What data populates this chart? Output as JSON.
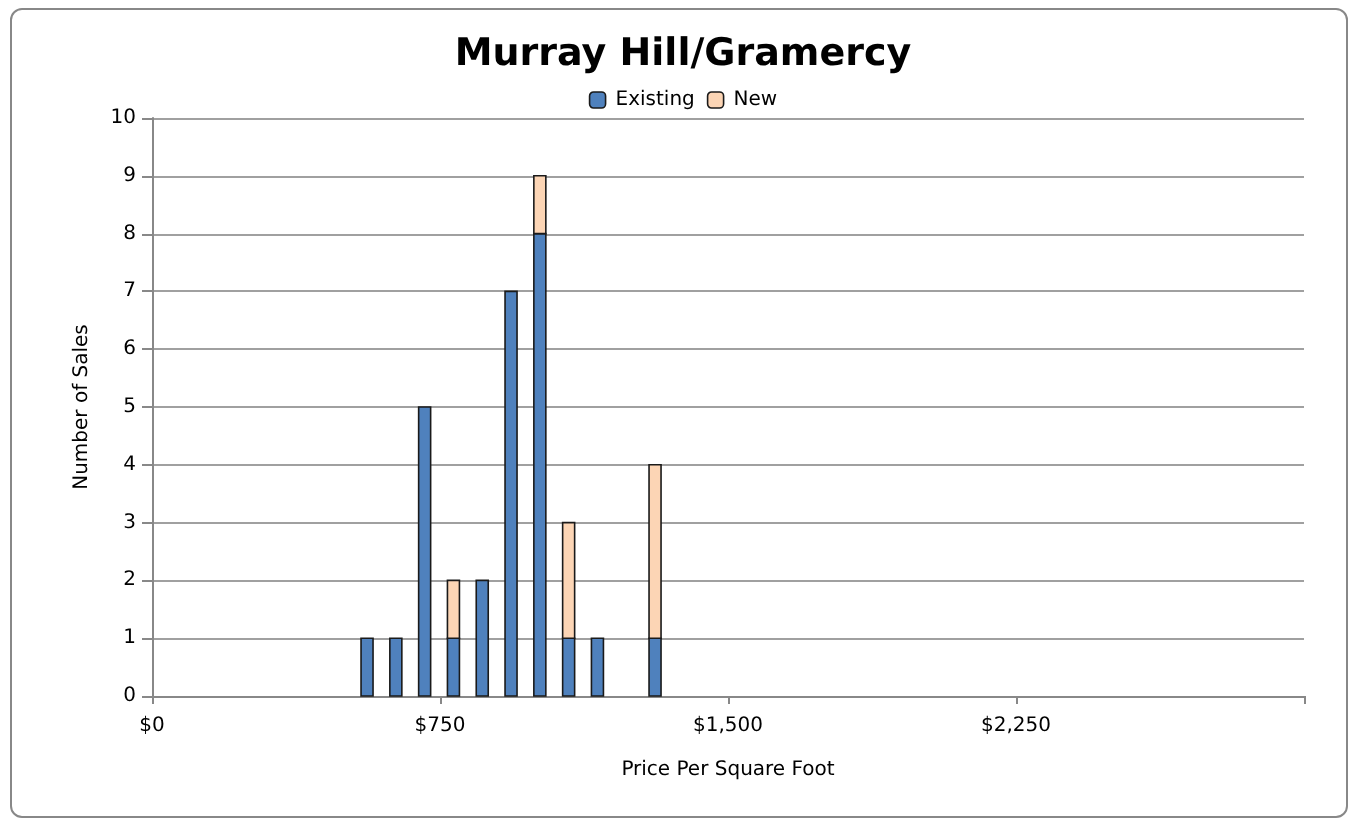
{
  "chart_data": {
    "type": "bar",
    "title": "Murray Hill/Gramercy",
    "xlabel": "Price Per Square Foot",
    "ylabel": "Number of Sales",
    "stacked": true,
    "x": [
      560,
      635,
      710,
      785,
      860,
      935,
      1010,
      1085,
      1160,
      1310
    ],
    "series": [
      {
        "name": "Existing",
        "color": "#4f81bd",
        "values": [
          1,
          1,
          5,
          1,
          2,
          7,
          8,
          1,
          1,
          1
        ]
      },
      {
        "name": "New",
        "color": "#fcd5b5",
        "values": [
          0,
          0,
          0,
          1,
          0,
          0,
          1,
          2,
          0,
          3
        ]
      }
    ],
    "xlim": [
      0,
      3000
    ],
    "xticks": [
      {
        "value": 0,
        "label": "$0"
      },
      {
        "value": 750,
        "label": "$750"
      },
      {
        "value": 1500,
        "label": "$1,500"
      },
      {
        "value": 2250,
        "label": "$2,250"
      },
      {
        "value": 3000,
        "label": null
      }
    ],
    "ylim": [
      0,
      10
    ],
    "yticks": [
      0,
      1,
      2,
      3,
      4,
      5,
      6,
      7,
      8,
      9,
      10
    ],
    "grid": "y",
    "legend": "top"
  }
}
